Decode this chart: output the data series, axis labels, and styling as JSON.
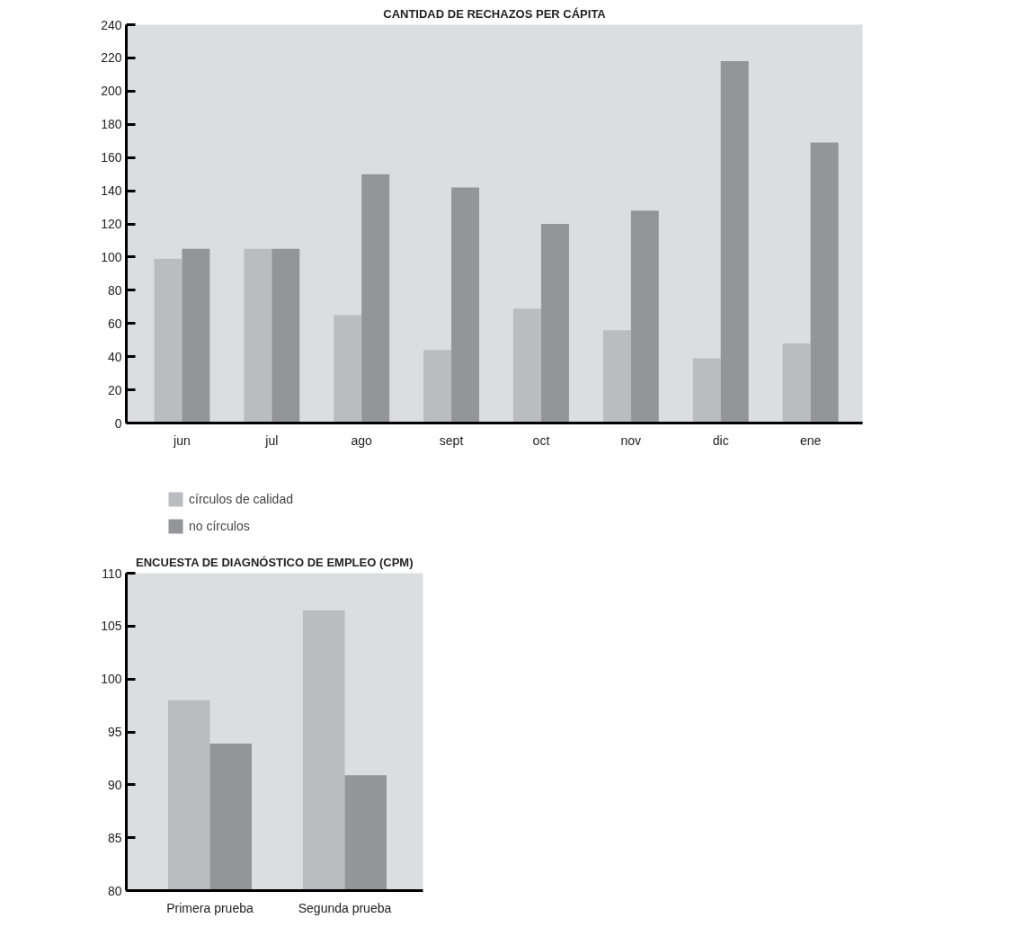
{
  "chart_data": [
    {
      "type": "bar",
      "title": "CANTIDAD DE RECHAZOS PER CÁPITA",
      "categories": [
        "jun",
        "jul",
        "ago",
        "sept",
        "oct",
        "nov",
        "dic",
        "ene"
      ],
      "series": [
        {
          "name": "círculos de calidad",
          "color": "#bbbcc0",
          "values": [
            99,
            105,
            65,
            44,
            69,
            56,
            39,
            48
          ]
        },
        {
          "name": "no círculos",
          "color": "#949598",
          "values": [
            105,
            105,
            150,
            142,
            120,
            128,
            218,
            169
          ]
        }
      ],
      "ylim": [
        0,
        240
      ],
      "yticks": [
        0,
        20,
        40,
        60,
        80,
        100,
        120,
        140,
        160,
        180,
        200,
        220,
        240
      ],
      "grid": false,
      "legend": "bottom"
    },
    {
      "type": "bar",
      "title": "ENCUESTA DE DIAGNÓSTICO DE EMPLEO (CPM)",
      "categories": [
        "Primera prueba",
        "Segunda prueba"
      ],
      "series": [
        {
          "color": "#bbbcc0",
          "values": [
            98,
            106.5
          ]
        },
        {
          "color": "#949598",
          "values": [
            93.9,
            90.9
          ]
        }
      ],
      "ylim": [
        80,
        110
      ],
      "yticks": [
        80,
        85,
        90,
        95,
        100,
        105,
        110
      ],
      "grid": false,
      "legend": false
    }
  ]
}
